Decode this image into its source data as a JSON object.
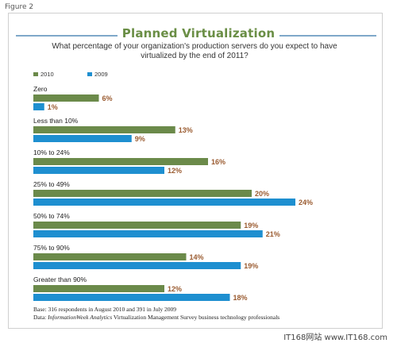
{
  "figure_label": "Figure 2",
  "watermark": "IT168网站 www.IT168.com",
  "colors": {
    "series_2010": "#6b8a4a",
    "series_2009": "#1e8fd0",
    "value_label": "#9a5b30",
    "title": "#6a8e45"
  },
  "chart_data": {
    "type": "bar",
    "orientation": "horizontal",
    "title": "Planned Virtualization",
    "subtitle": "What percentage of your organization's production servers do you expect to have virtualized by the end of 2011?",
    "categories": [
      "Zero",
      "Less than 10%",
      "10% to 24%",
      "25% to 49%",
      "50% to 74%",
      "75% to 90%",
      "Greater than 90%"
    ],
    "series": [
      {
        "name": "2010",
        "values": [
          6,
          13,
          16,
          20,
          19,
          14,
          12
        ],
        "labels": [
          "6%",
          "13%",
          "16%",
          "20%",
          "19%",
          "14%",
          "12%"
        ]
      },
      {
        "name": "2009",
        "values": [
          1,
          9,
          12,
          24,
          21,
          19,
          18
        ],
        "labels": [
          "1%",
          "9%",
          "12%",
          "24%",
          "21%",
          "19%",
          "18%"
        ]
      }
    ],
    "legend_position": "top-left",
    "xlim": [
      0,
      24
    ],
    "grid": false
  },
  "footnote": {
    "base": "Base: 316 respondents in August 2010 and 391 in July 2009",
    "data_prefix": "Data: ",
    "data_source_italic": "InformationWeek Analytics",
    "data_rest": " Virtualization Management Survey business technology professionals"
  }
}
